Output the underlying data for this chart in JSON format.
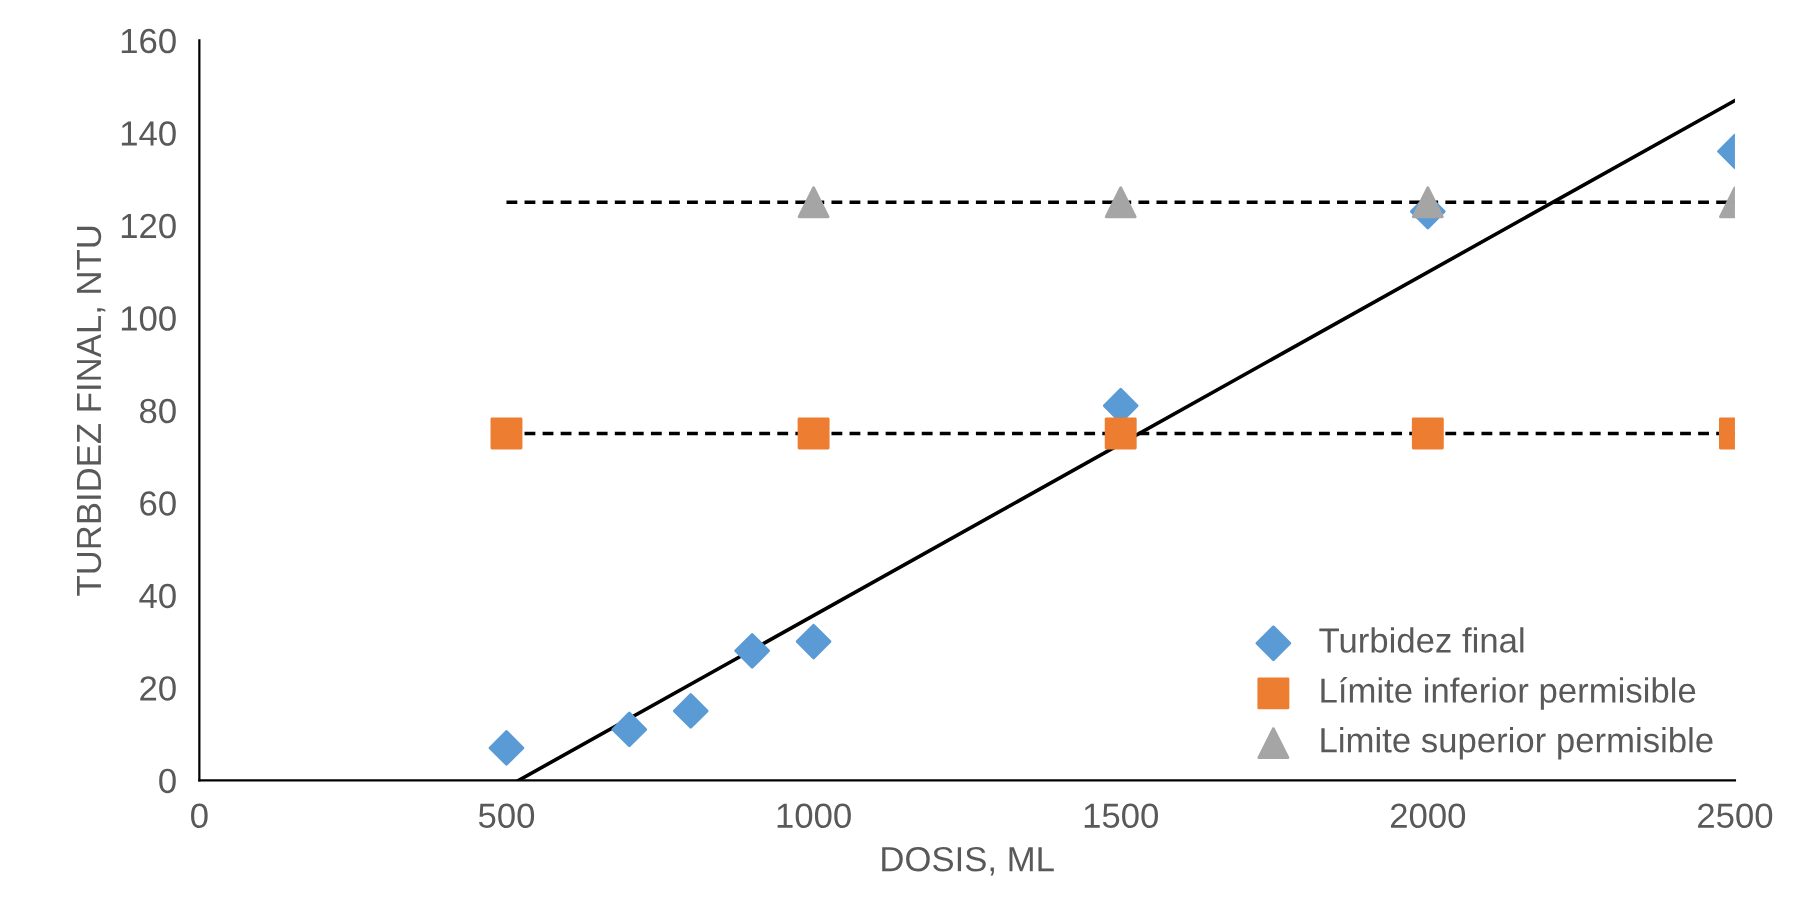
{
  "chart_data": {
    "type": "scatter",
    "xlabel": "DOSIS, ML",
    "ylabel": "TURBIDEZ FINAL, NTU",
    "xlim": [
      0,
      2500
    ],
    "ylim": [
      0,
      160
    ],
    "xticks": [
      0,
      500,
      1000,
      1500,
      2000,
      2500
    ],
    "yticks": [
      0,
      20,
      40,
      60,
      80,
      100,
      120,
      140,
      160
    ],
    "grid": false,
    "legend": "bottom right",
    "series": [
      {
        "type": "line",
        "x": [
          500,
          2500
        ],
        "values": [
          75,
          75
        ],
        "color": "#000000",
        "line_style": "dashed",
        "marker": "none"
      },
      {
        "type": "line",
        "x": [
          500,
          2500
        ],
        "values": [
          125,
          125
        ],
        "color": "#000000",
        "line_style": "dashed",
        "marker": "none"
      },
      {
        "type": "line",
        "x": [
          520,
          2500
        ],
        "values": [
          0,
          147
        ],
        "color": "#000000",
        "line_style": "solid",
        "marker": "none"
      },
      {
        "name": "Turbidez final",
        "marker": "diamond",
        "color": "#5b9bd5",
        "x": [
          500,
          700,
          800,
          900,
          1000,
          1500,
          2000,
          2500
        ],
        "values": [
          7,
          11,
          15,
          28,
          30,
          81,
          123,
          136
        ]
      },
      {
        "name": "Límite inferior permisible",
        "marker": "square",
        "color": "#ed7d31",
        "x": [
          500,
          1000,
          1500,
          2000,
          2500
        ],
        "values": [
          75,
          75,
          75,
          75,
          75
        ]
      },
      {
        "name": "Limite superior permisible",
        "marker": "triangle",
        "color": "#a5a5a5",
        "x": [
          1000,
          1500,
          2000,
          2500
        ],
        "values": [
          125,
          125,
          125,
          125
        ]
      }
    ]
  }
}
